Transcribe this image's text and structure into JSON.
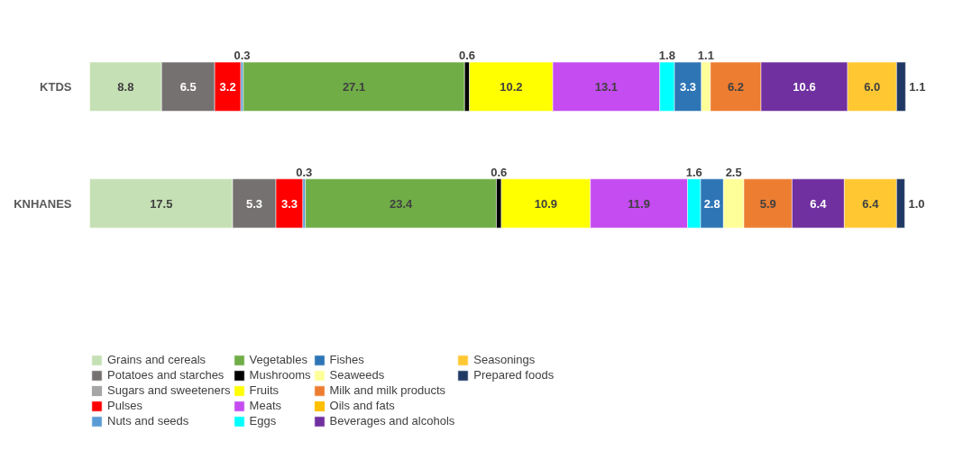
{
  "chart_data": {
    "type": "bar",
    "orientation": "horizontal",
    "stacked": true,
    "legend": "bottom",
    "grid": false,
    "categories": [
      "KTDS",
      "KNHANES"
    ],
    "series": [
      {
        "name": "Grains and cereals",
        "color": "#c5e0b4",
        "values": [
          8.8,
          17.5
        ],
        "value_labels": [
          "8.8",
          "17.5"
        ]
      },
      {
        "name": "Potatoes and starches",
        "color": "#767171",
        "values": [
          6.5,
          5.3
        ],
        "value_labels": [
          "6.5",
          "5.3"
        ]
      },
      {
        "name": "Sugars and sweeteners",
        "color": "#a6a6a6",
        "values": [
          null,
          null
        ],
        "value_labels": [
          null,
          null
        ]
      },
      {
        "name": "Pulses",
        "color": "#ff0000",
        "values": [
          3.2,
          3.3
        ],
        "value_labels": [
          "3.2",
          "3.3"
        ]
      },
      {
        "name": "Nuts and seeds",
        "color": "#5b9bd5",
        "values": [
          0.3,
          0.3
        ],
        "value_labels": [
          "0.3",
          "0.3"
        ]
      },
      {
        "name": "Vegetables",
        "color": "#70ad47",
        "values": [
          27.1,
          23.4
        ],
        "value_labels": [
          "27.1",
          "23.4"
        ]
      },
      {
        "name": "Mushrooms",
        "color": "#000000",
        "values": [
          0.6,
          0.6
        ],
        "value_labels": [
          "0.6",
          "0.6"
        ]
      },
      {
        "name": "Fruits",
        "color": "#ffff00",
        "values": [
          10.2,
          10.9
        ],
        "value_labels": [
          "10.2",
          "10.9"
        ]
      },
      {
        "name": "Meats",
        "color": "#c44cf0",
        "values": [
          13.1,
          11.9
        ],
        "value_labels": [
          "13.1",
          "11.9"
        ]
      },
      {
        "name": "Eggs",
        "color": "#00ffff",
        "values": [
          1.8,
          1.6
        ],
        "value_labels": [
          "1.8",
          "1.6"
        ]
      },
      {
        "name": "Fishes",
        "color": "#2e75b6",
        "values": [
          3.3,
          2.8
        ],
        "value_labels": [
          "3.3",
          "2.8"
        ]
      },
      {
        "name": "Seaweeds",
        "color": "#ffff99",
        "values": [
          1.1,
          2.5
        ],
        "value_labels": [
          "1.1",
          "2.5"
        ]
      },
      {
        "name": "Milk and milk products",
        "color": "#ed7d31",
        "values": [
          6.2,
          5.9
        ],
        "value_labels": [
          "6.2",
          "5.9"
        ]
      },
      {
        "name": "Oils and fats",
        "color": "#ffc000",
        "values": [
          null,
          null
        ],
        "value_labels": [
          null,
          null
        ]
      },
      {
        "name": "Beverages and alcohols",
        "color": "#7030a0",
        "values": [
          10.6,
          6.4
        ],
        "value_labels": [
          "10.6",
          "6.4"
        ]
      },
      {
        "name": "Seasonings",
        "color": "#ffc832",
        "values": [
          6.0,
          6.4
        ],
        "value_labels": [
          "6.0",
          "6.4"
        ]
      },
      {
        "name": "Prepared foods",
        "color": "#203864",
        "values": [
          1.1,
          1.0
        ],
        "value_labels": [
          "1.1",
          "1.0"
        ]
      }
    ]
  }
}
